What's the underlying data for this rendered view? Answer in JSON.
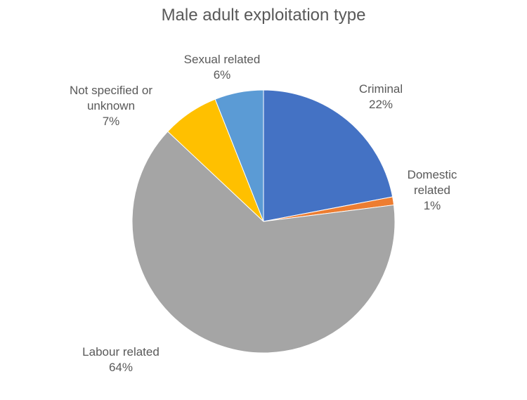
{
  "chart_data": {
    "type": "pie",
    "title": "Male adult exploitation type",
    "start_angle_deg": 0,
    "direction": "clockwise",
    "legend": "none",
    "slices": [
      {
        "name": "Criminal",
        "value": 22,
        "pct_label": "22%",
        "color": "#4472C4"
      },
      {
        "name": "Domestic related",
        "value": 1,
        "pct_label": "1%",
        "color": "#ED7D31"
      },
      {
        "name": "Labour related",
        "value": 64,
        "pct_label": "64%",
        "color": "#A5A5A5"
      },
      {
        "name": "Not specified or unknown",
        "value": 7,
        "pct_label": "7%",
        "color": "#FFC000"
      },
      {
        "name": "Sexual related",
        "value": 6,
        "pct_label": "6%",
        "color": "#5B9BD5"
      }
    ]
  }
}
